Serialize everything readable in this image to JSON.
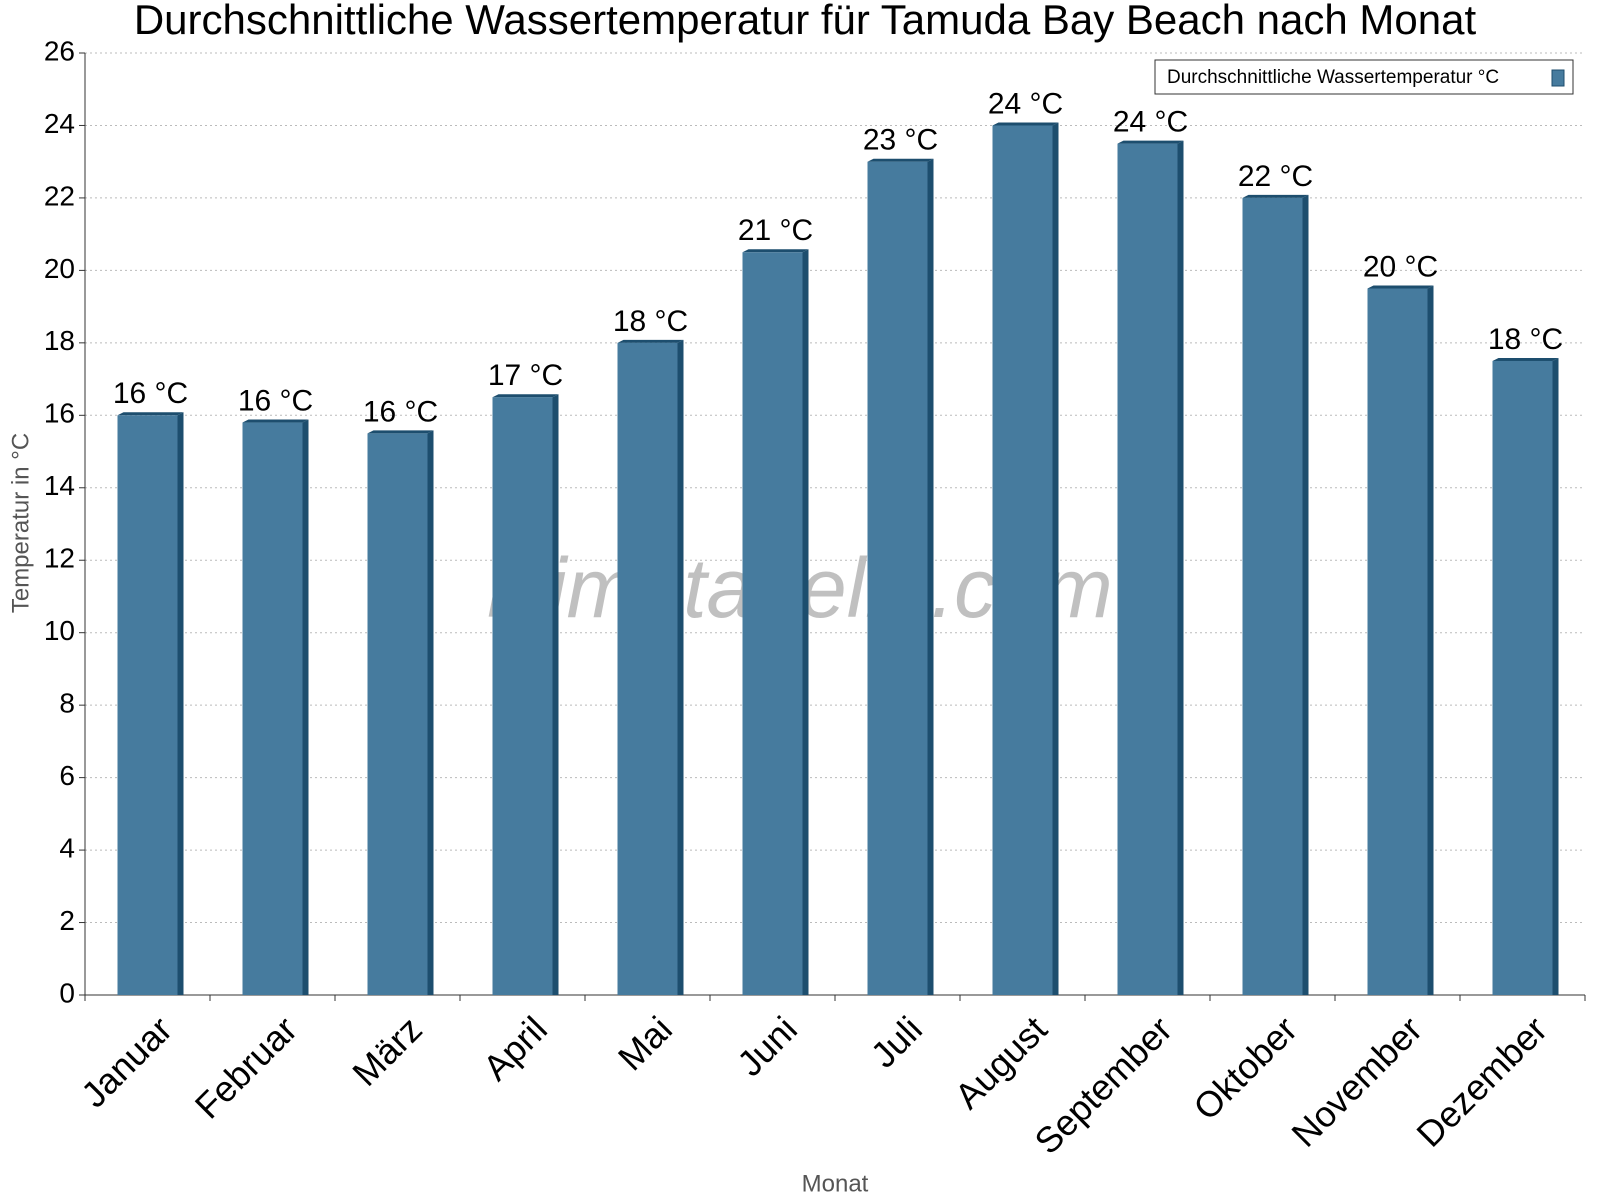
{
  "chart_data": {
    "type": "bar",
    "title": "Durchschnittliche Wassertemperatur für Tamuda Bay Beach nach Monat",
    "x_label": "Monat",
    "y_label": "Temperatur in °C",
    "watermark": "klimatabelle.com",
    "categories": [
      "Januar",
      "Februar",
      "März",
      "April",
      "Mai",
      "Juni",
      "Juli",
      "August",
      "September",
      "Oktober",
      "November",
      "Dezember"
    ],
    "series": [
      {
        "name": "Durchschnittliche Wassertemperatur °C",
        "color": "#467b9e",
        "values": [
          16.0,
          15.8,
          15.5,
          16.5,
          18.0,
          20.5,
          23.0,
          24.0,
          23.5,
          22.0,
          19.5,
          17.5
        ],
        "value_labels": [
          "16 °C",
          "16 °C",
          "16 °C",
          "17 °C",
          "18 °C",
          "21 °C",
          "23 °C",
          "24 °C",
          "24 °C",
          "22 °C",
          "20 °C",
          "18 °C"
        ]
      }
    ],
    "ylim": [
      0,
      26
    ],
    "yticks": [
      0,
      2,
      4,
      6,
      8,
      10,
      12,
      14,
      16,
      18,
      20,
      22,
      24,
      26
    ],
    "grid": true,
    "legend": "upper right"
  }
}
